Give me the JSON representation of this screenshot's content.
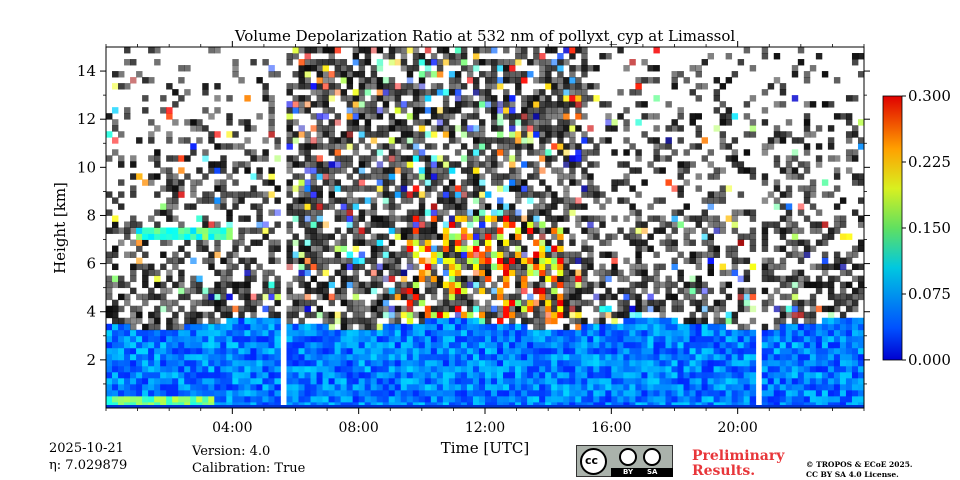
{
  "chart_data": {
    "type": "heatmap",
    "title": "Volume Depolarization Ratio at 532 nm of pollyxt_cyp at Limassol",
    "xlabel": "Time [UTC]",
    "ylabel": "Height [km]",
    "x_tick_labels": [
      "04:00",
      "08:00",
      "12:00",
      "16:00",
      "20:00"
    ],
    "x_tick_hours": [
      4,
      8,
      12,
      16,
      20
    ],
    "xlim_hours": [
      0,
      24
    ],
    "y_tick_labels": [
      "2",
      "4",
      "6",
      "8",
      "10",
      "12",
      "14"
    ],
    "y_ticks": [
      2,
      4,
      6,
      8,
      10,
      12,
      14
    ],
    "ylim_km": [
      0,
      15
    ],
    "colorbar": {
      "min": 0.0,
      "max": 0.3,
      "tick_labels": [
        "0.000",
        "0.075",
        "0.150",
        "0.225",
        "0.300"
      ],
      "ticks": [
        0.0,
        0.075,
        0.15,
        0.225,
        0.3
      ],
      "colormap": "jet"
    },
    "missing_data_gaps_hours": [
      [
        5.53,
        5.68
      ],
      [
        20.57,
        20.71
      ]
    ],
    "features": [
      {
        "name": "boundary-layer",
        "height_km": [
          0,
          3.5
        ],
        "ratio_range": [
          0.02,
          0.1
        ]
      },
      {
        "name": "ice-cloud",
        "time_hours": [
          9.5,
          14.5
        ],
        "height_km": [
          3.5,
          8
        ],
        "ratio_range": [
          0.15,
          0.27
        ]
      },
      {
        "name": "cloud-layer",
        "time_hours": [
          1,
          4
        ],
        "height_km": [
          7,
          7.3
        ],
        "ratio_range": [
          0.1,
          0.16
        ]
      }
    ]
  },
  "footer": {
    "date": "2025-10-21",
    "eta": "η: 7.029879",
    "version": "Version: 4.0",
    "calibration": "Calibration: True",
    "preliminary_line1": "Preliminary",
    "preliminary_line2": "Results.",
    "copyright_line1": "© TROPOS & ECoE 2025.",
    "copyright_line2": "CC BY SA 4.0 License.",
    "license_badge": {
      "cc": "cc",
      "by": "BY",
      "sa": "SA"
    }
  }
}
